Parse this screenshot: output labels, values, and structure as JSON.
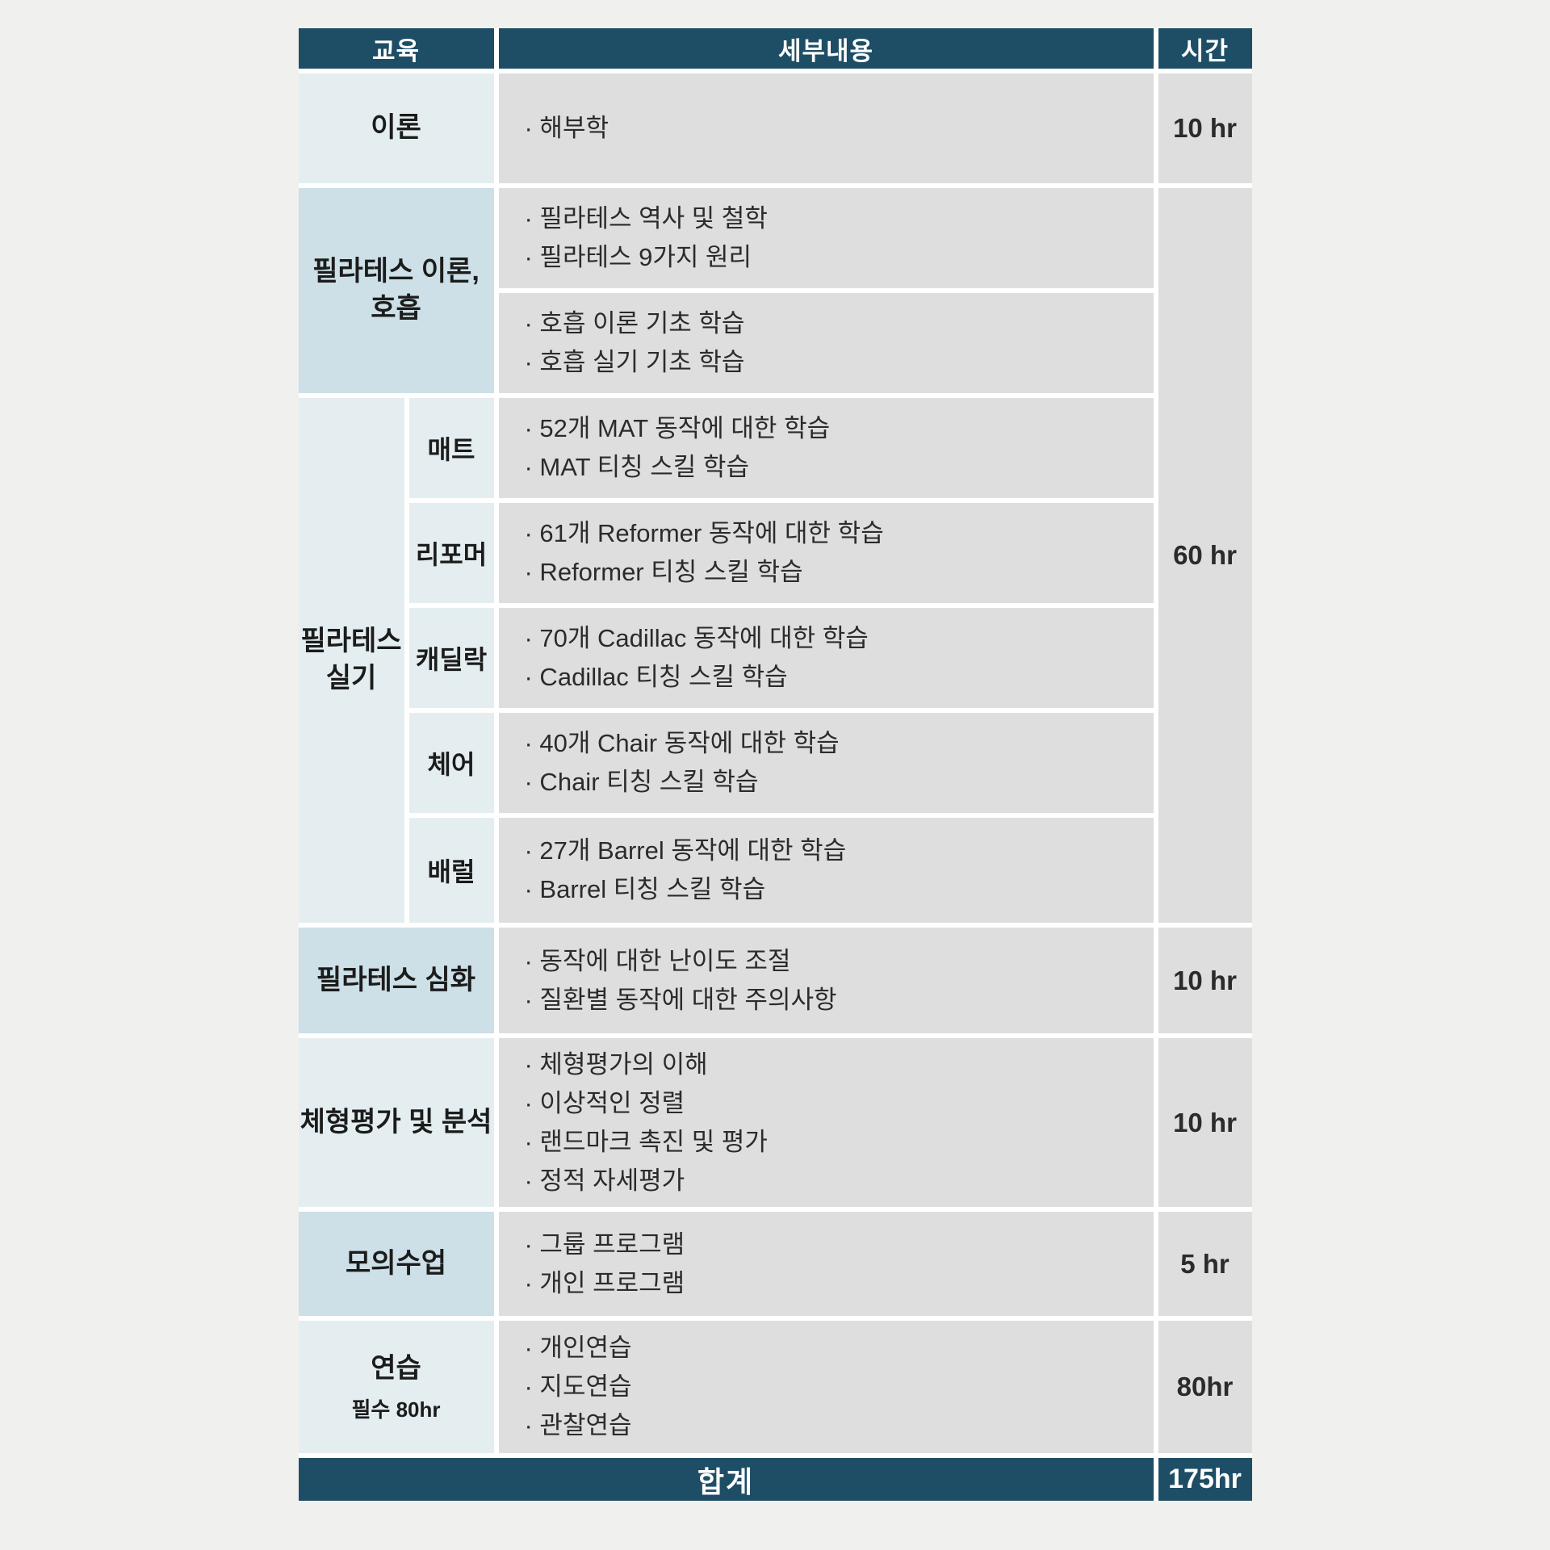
{
  "header": {
    "education": "교육",
    "details": "세부내용",
    "hours": "시간"
  },
  "colors": {
    "navy_header": "#1e4e66",
    "light_blue_cell": "#cddfe7",
    "pale_blue_cell": "#e4eef0",
    "gray_cell": "#dedede",
    "page_background": "#f0f0ee"
  },
  "rows": {
    "theory": {
      "label": "이론",
      "details": {
        "items": [
          "· 해부학"
        ]
      },
      "hours": "10 hr"
    },
    "pilates_theory_breath": {
      "label_lines": [
        "필라테스 이론,",
        "호흡"
      ],
      "detail_a": {
        "items": [
          "· 필라테스 역사 및 철학",
          "· 필라테스 9가지 원리"
        ]
      },
      "detail_b": {
        "items": [
          "· 호흡 이론 기초 학습",
          "· 호흡 실기 기초 학습"
        ]
      }
    },
    "pilates_practice": {
      "label_lines": [
        "필라테스",
        "실기"
      ],
      "combined_hours": "60 hr",
      "sub": {
        "mat": {
          "label": "매트",
          "items": [
            "· 52개 MAT 동작에 대한 학습",
            "· MAT 티칭 스킬 학습"
          ]
        },
        "reformer": {
          "label": "리포머",
          "items": [
            "· 61개 Reformer 동작에 대한 학습",
            "· Reformer 티칭 스킬 학습"
          ]
        },
        "cadillac": {
          "label": "캐딜락",
          "items": [
            "· 70개 Cadillac 동작에 대한 학습",
            "· Cadillac 티칭 스킬 학습"
          ]
        },
        "chair": {
          "label": "체어",
          "items": [
            "· 40개 Chair 동작에 대한 학습",
            "· Chair 티칭 스킬 학습"
          ]
        },
        "barrel": {
          "label": "배럴",
          "items": [
            "· 27개 Barrel 동작에 대한 학습",
            "· Barrel 티칭 스킬 학습"
          ]
        }
      }
    },
    "advanced": {
      "label": "필라테스 심화",
      "details": {
        "items": [
          "· 동작에 대한 난이도 조절",
          "· 질환별 동작에 대한 주의사항"
        ]
      },
      "hours": "10 hr"
    },
    "posture_eval": {
      "label": "체형평가 및 분석",
      "details": {
        "items": [
          "· 체형평가의 이해",
          "· 이상적인 정렬",
          "· 랜드마크 촉진 및 평가",
          "· 정적 자세평가"
        ]
      },
      "hours": "10 hr"
    },
    "mock_class": {
      "label": "모의수업",
      "details": {
        "items": [
          "· 그룹 프로그램",
          "· 개인 프로그램"
        ]
      },
      "hours": "5 hr"
    },
    "practice": {
      "label": "연습",
      "sublabel": "필수 80hr",
      "details": {
        "items": [
          "· 개인연습",
          "· 지도연습",
          "· 관찰연습"
        ]
      },
      "hours": "80hr"
    }
  },
  "footer": {
    "label": "합계",
    "hours": "175hr"
  }
}
